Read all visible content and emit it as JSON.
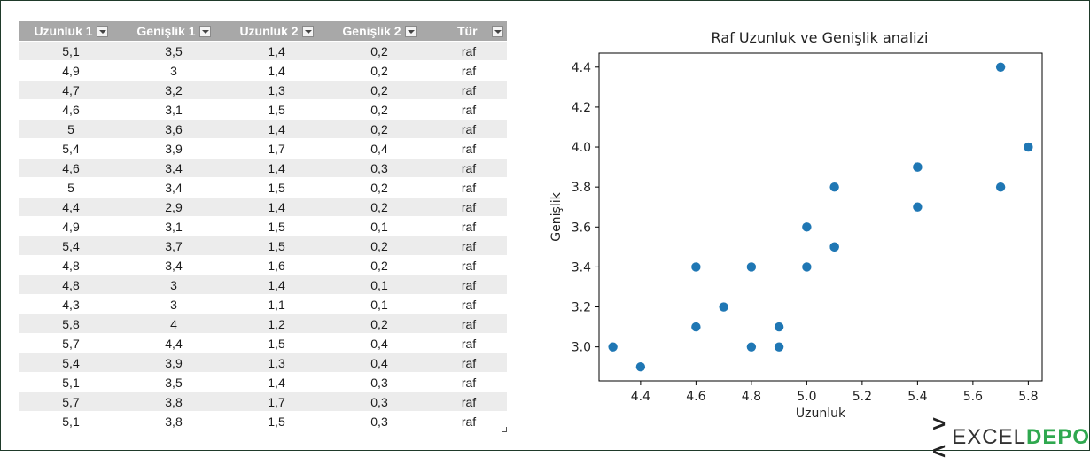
{
  "table": {
    "headers": [
      "Uzunluk 1",
      "Genişlik 1",
      "Uzunluk 2",
      "Genişlik 2",
      "Tür"
    ],
    "rows": [
      [
        "5,1",
        "3,5",
        "1,4",
        "0,2",
        "raf"
      ],
      [
        "4,9",
        "3",
        "1,4",
        "0,2",
        "raf"
      ],
      [
        "4,7",
        "3,2",
        "1,3",
        "0,2",
        "raf"
      ],
      [
        "4,6",
        "3,1",
        "1,5",
        "0,2",
        "raf"
      ],
      [
        "5",
        "3,6",
        "1,4",
        "0,2",
        "raf"
      ],
      [
        "5,4",
        "3,9",
        "1,7",
        "0,4",
        "raf"
      ],
      [
        "4,6",
        "3,4",
        "1,4",
        "0,3",
        "raf"
      ],
      [
        "5",
        "3,4",
        "1,5",
        "0,2",
        "raf"
      ],
      [
        "4,4",
        "2,9",
        "1,4",
        "0,2",
        "raf"
      ],
      [
        "4,9",
        "3,1",
        "1,5",
        "0,1",
        "raf"
      ],
      [
        "5,4",
        "3,7",
        "1,5",
        "0,2",
        "raf"
      ],
      [
        "4,8",
        "3,4",
        "1,6",
        "0,2",
        "raf"
      ],
      [
        "4,8",
        "3",
        "1,4",
        "0,1",
        "raf"
      ],
      [
        "4,3",
        "3",
        "1,1",
        "0,1",
        "raf"
      ],
      [
        "5,8",
        "4",
        "1,2",
        "0,2",
        "raf"
      ],
      [
        "5,7",
        "4,4",
        "1,5",
        "0,4",
        "raf"
      ],
      [
        "5,4",
        "3,9",
        "1,3",
        "0,4",
        "raf"
      ],
      [
        "5,1",
        "3,5",
        "1,4",
        "0,3",
        "raf"
      ],
      [
        "5,7",
        "3,8",
        "1,7",
        "0,3",
        "raf"
      ],
      [
        "5,1",
        "3,8",
        "1,5",
        "0,3",
        "raf"
      ]
    ]
  },
  "chart_data": {
    "type": "scatter",
    "title": "Raf Uzunluk ve Genişlik analizi",
    "xlabel": "Uzunluk",
    "ylabel": "Genişlik",
    "xlim": [
      4.25,
      5.85
    ],
    "ylim": [
      2.83,
      4.47
    ],
    "xticks": [
      4.4,
      4.6,
      4.8,
      5.0,
      5.2,
      5.4,
      5.6,
      5.8
    ],
    "yticks": [
      3.0,
      3.2,
      3.4,
      3.6,
      3.8,
      4.0,
      4.2,
      4.4
    ],
    "grid": false,
    "marker_color": "#1f77b4",
    "points": [
      {
        "x": 5.1,
        "y": 3.5
      },
      {
        "x": 4.9,
        "y": 3.0
      },
      {
        "x": 4.7,
        "y": 3.2
      },
      {
        "x": 4.6,
        "y": 3.1
      },
      {
        "x": 5.0,
        "y": 3.6
      },
      {
        "x": 5.4,
        "y": 3.9
      },
      {
        "x": 4.6,
        "y": 3.4
      },
      {
        "x": 5.0,
        "y": 3.4
      },
      {
        "x": 4.4,
        "y": 2.9
      },
      {
        "x": 4.9,
        "y": 3.1
      },
      {
        "x": 5.4,
        "y": 3.7
      },
      {
        "x": 4.8,
        "y": 3.4
      },
      {
        "x": 4.8,
        "y": 3.0
      },
      {
        "x": 4.3,
        "y": 3.0
      },
      {
        "x": 5.8,
        "y": 4.0
      },
      {
        "x": 5.7,
        "y": 4.4
      },
      {
        "x": 5.4,
        "y": 3.9
      },
      {
        "x": 5.1,
        "y": 3.5
      },
      {
        "x": 5.7,
        "y": 3.8
      },
      {
        "x": 5.1,
        "y": 3.8
      }
    ]
  },
  "logo": {
    "part1": "EXCEL",
    "part2": "DEPO"
  },
  "colors": {
    "header_bg": "#a8a8a8",
    "band": "#ececec",
    "accent": "#2fa84f"
  }
}
